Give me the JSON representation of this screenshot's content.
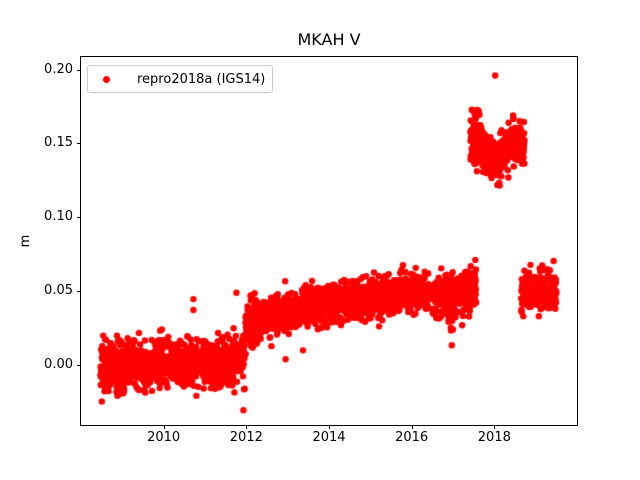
{
  "chart_data": {
    "type": "scatter",
    "title": "MKAH V",
    "xlabel": "",
    "ylabel": "m",
    "grid": false,
    "legend_position": "upper left",
    "xlim": [
      2008.0,
      2020.0
    ],
    "ylim": [
      -0.0405,
      0.2085
    ],
    "x_ticks": [
      {
        "value": 2010,
        "label": "2010"
      },
      {
        "value": 2012,
        "label": "2012"
      },
      {
        "value": 2014,
        "label": "2014"
      },
      {
        "value": 2016,
        "label": "2016"
      },
      {
        "value": 2018,
        "label": "2018"
      }
    ],
    "y_ticks": [
      {
        "value": 0.0,
        "label": "0.00"
      },
      {
        "value": 0.05,
        "label": "0.05"
      },
      {
        "value": 0.1,
        "label": "0.10"
      },
      {
        "value": 0.15,
        "label": "0.15"
      },
      {
        "value": 0.2,
        "label": "0.20"
      }
    ],
    "series": [
      {
        "name": "repro2018a (IGS14)",
        "color": "#ff0000",
        "marker": "circle",
        "marker_radius": 3.2,
        "segments": [
          {
            "x0": 2008.47,
            "x1": 2010.85,
            "y0": 0.001,
            "y1": 0.002,
            "sd": 0.0078,
            "n": 640
          },
          {
            "x0": 2008.55,
            "x1": 2008.7,
            "y0": -0.012,
            "y1": -0.012,
            "sd": 0.005,
            "n": 25
          },
          {
            "x0": 2008.85,
            "x1": 2009.05,
            "y0": -0.013,
            "y1": -0.012,
            "sd": 0.0055,
            "n": 40
          },
          {
            "x0": 2009.5,
            "x1": 2009.62,
            "y0": -0.01,
            "y1": -0.01,
            "sd": 0.005,
            "n": 18
          },
          {
            "x0": 2010.35,
            "x1": 2010.62,
            "y0": -0.009,
            "y1": -0.008,
            "sd": 0.005,
            "n": 30
          },
          {
            "x0": 2010.9,
            "x1": 2011.96,
            "y0": 0.001,
            "y1": 0.004,
            "sd": 0.008,
            "n": 270
          },
          {
            "x0": 2011.15,
            "x1": 2011.7,
            "y0": -0.009,
            "y1": -0.009,
            "sd": 0.004,
            "n": 30
          },
          {
            "x0": 2011.98,
            "x1": 2012.32,
            "y0": 0.027,
            "y1": 0.031,
            "sd": 0.0085,
            "n": 110
          },
          {
            "x0": 2012.32,
            "x1": 2013.0,
            "y0": 0.032,
            "y1": 0.035,
            "sd": 0.0065,
            "n": 195
          },
          {
            "x0": 2013.0,
            "x1": 2014.0,
            "y0": 0.036,
            "y1": 0.042,
            "sd": 0.0066,
            "n": 295
          },
          {
            "x0": 2014.0,
            "x1": 2015.0,
            "y0": 0.042,
            "y1": 0.045,
            "sd": 0.0066,
            "n": 295
          },
          {
            "x0": 2015.0,
            "x1": 2016.0,
            "y0": 0.045,
            "y1": 0.049,
            "sd": 0.0066,
            "n": 295
          },
          {
            "x0": 2016.0,
            "x1": 2016.42,
            "y0": 0.049,
            "y1": 0.048,
            "sd": 0.006,
            "n": 120
          },
          {
            "x0": 2016.5,
            "x1": 2017.56,
            "y0": 0.046,
            "y1": 0.052,
            "sd": 0.0066,
            "n": 300
          },
          {
            "x0": 2016.88,
            "x1": 2017.06,
            "y0": 0.034,
            "y1": 0.035,
            "sd": 0.0045,
            "n": 22
          },
          {
            "x0": 2017.42,
            "x1": 2017.7,
            "y0": 0.151,
            "y1": 0.149,
            "sd": 0.0075,
            "n": 110
          },
          {
            "x0": 2017.5,
            "x1": 2017.64,
            "y0": 0.17,
            "y1": 0.171,
            "sd": 0.0022,
            "n": 9
          },
          {
            "x0": 2017.7,
            "x1": 2018.1,
            "y0": 0.145,
            "y1": 0.138,
            "sd": 0.006,
            "n": 130
          },
          {
            "x0": 2018.1,
            "x1": 2018.45,
            "y0": 0.139,
            "y1": 0.151,
            "sd": 0.0065,
            "n": 120
          },
          {
            "x0": 2018.45,
            "x1": 2018.73,
            "y0": 0.153,
            "y1": 0.149,
            "sd": 0.0065,
            "n": 95
          },
          {
            "x0": 2018.65,
            "x1": 2019.5,
            "y0": 0.049,
            "y1": 0.051,
            "sd": 0.0066,
            "n": 250
          }
        ],
        "outliers": [
          [
            2010.72,
            0.0447
          ],
          [
            2010.72,
            0.0373
          ],
          [
            2011.93,
            -0.0305
          ],
          [
            2011.76,
            0.049
          ],
          [
            2012.1,
            0.047
          ],
          [
            2012.26,
            0.0156
          ],
          [
            2012.95,
            0.004
          ],
          [
            2013.37,
            0.01
          ],
          [
            2013.73,
            0.0243
          ],
          [
            2016.95,
            0.0235
          ],
          [
            2016.97,
            0.0135
          ],
          [
            2017.22,
            0.027
          ],
          [
            2017.54,
            0.0712
          ],
          [
            2018.02,
            0.196
          ],
          [
            2018.12,
            0.1235
          ],
          [
            2018.34,
            0.127
          ],
          [
            2018.7,
            0.033
          ]
        ]
      }
    ]
  },
  "legend": {
    "label": "repro2018a (IGS14)",
    "marker_color": "#ff0000"
  }
}
